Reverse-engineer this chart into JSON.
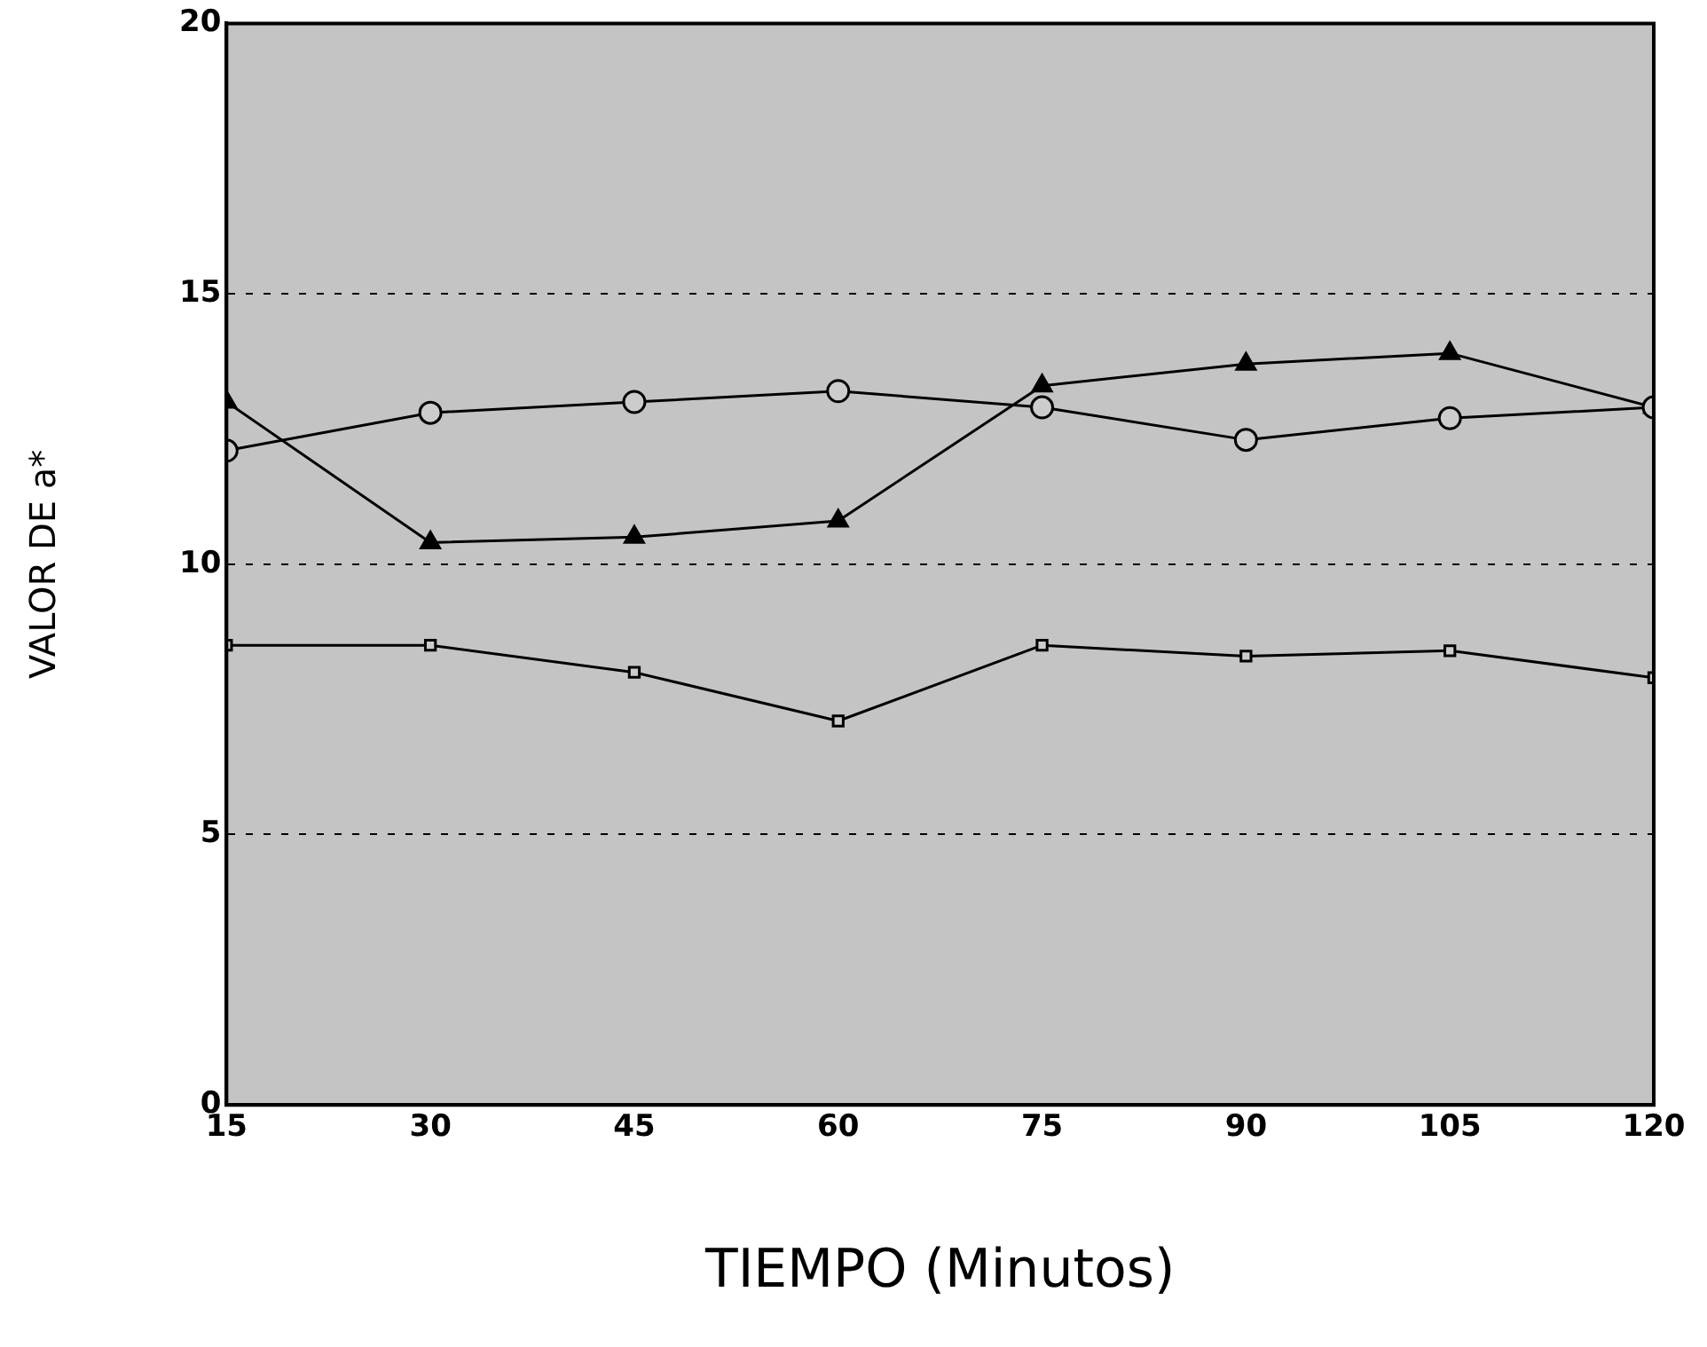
{
  "chart_data": {
    "type": "line",
    "xlabel": "TIEMPO (Minutos)",
    "ylabel": "VALOR DE a*",
    "x": [
      15,
      30,
      45,
      60,
      75,
      90,
      105,
      120
    ],
    "series": [
      {
        "color": "#000000",
        "marker": "circle",
        "values": [
          12.1,
          12.8,
          13.0,
          13.2,
          12.9,
          12.3,
          12.7,
          12.9
        ]
      },
      {
        "color": "#000000",
        "marker": "triangle",
        "values": [
          13.0,
          10.4,
          10.5,
          10.8,
          13.3,
          13.7,
          13.9,
          12.9
        ]
      },
      {
        "color": "#000000",
        "marker": "square",
        "values": [
          8.5,
          8.5,
          8.0,
          7.1,
          8.5,
          8.3,
          8.4,
          7.9
        ]
      }
    ],
    "xlim": [
      15,
      120
    ],
    "xticks": [
      15,
      30,
      45,
      60,
      75,
      90,
      105,
      120
    ],
    "ylim": [
      0,
      20
    ],
    "yticks": [
      0,
      5,
      10,
      15,
      20
    ],
    "grid": "y",
    "line_style": "solid",
    "legend": false
  }
}
